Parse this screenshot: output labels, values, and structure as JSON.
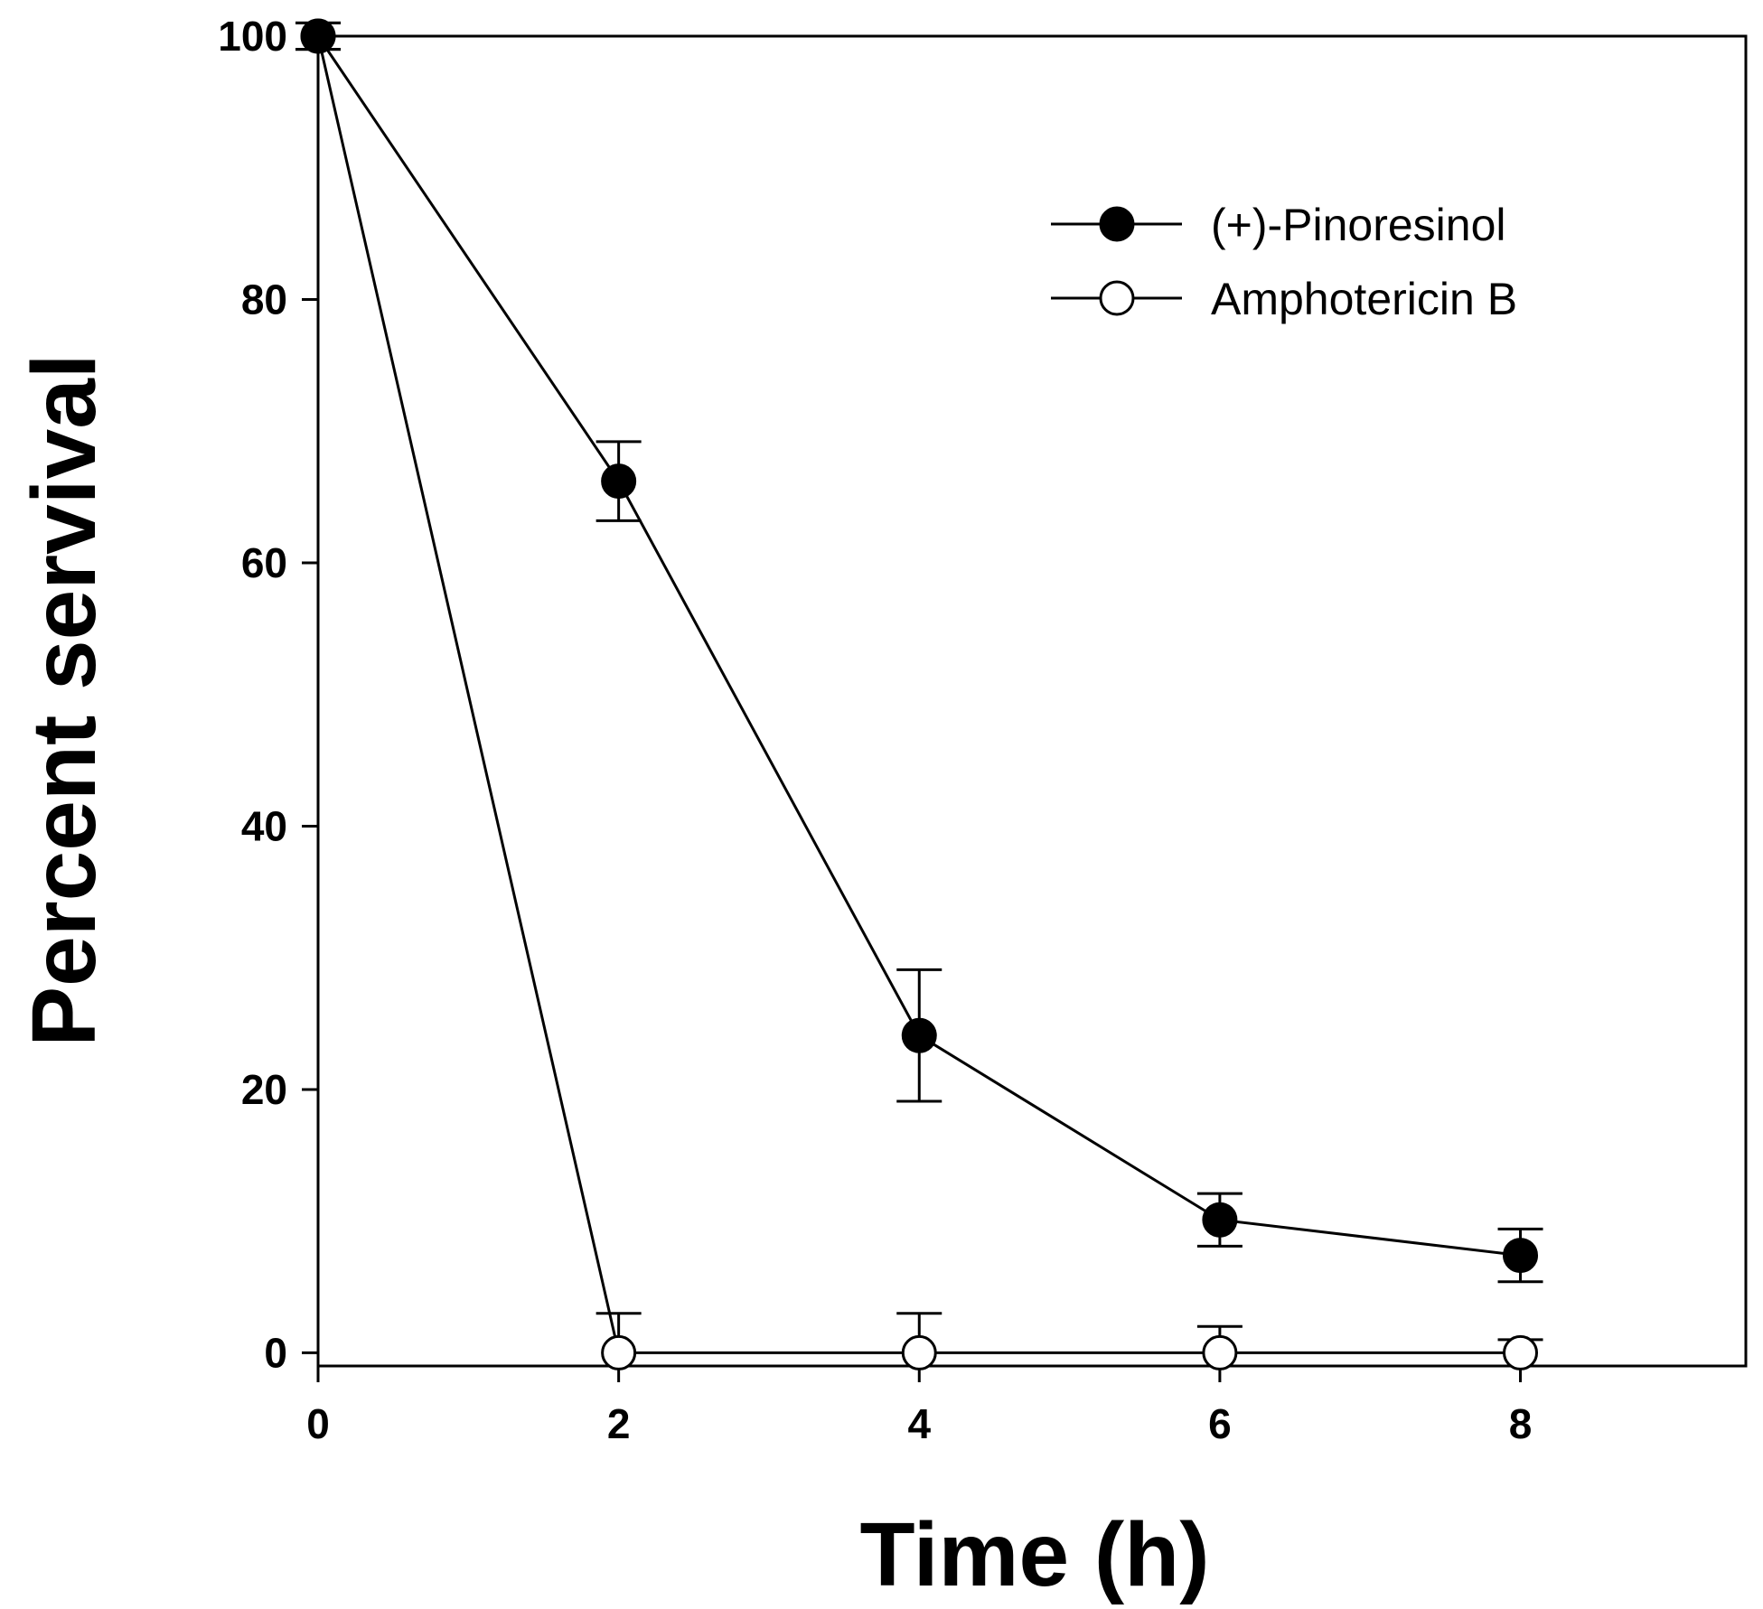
{
  "chart_data": {
    "type": "line",
    "title": "",
    "xlabel": "Time (h)",
    "ylabel": "Percent servival",
    "xlim": [
      0,
      9.5
    ],
    "ylim": [
      -1,
      100
    ],
    "xticks": [
      0,
      2,
      4,
      6,
      8
    ],
    "yticks": [
      0,
      20,
      40,
      60,
      80,
      100
    ],
    "xtick_labels": [
      "0",
      "2",
      "4",
      "6",
      "8"
    ],
    "ytick_labels": [
      "0",
      "20",
      "40",
      "60",
      "80",
      "100"
    ],
    "grid": false,
    "legend_position": "top-right",
    "series": [
      {
        "name": "(+)-Pinoresinol",
        "marker": "filled-circle",
        "x": [
          0,
          2,
          4,
          6,
          8
        ],
        "y": [
          100,
          66.2,
          24.1,
          10.1,
          7.4
        ],
        "error": [
          1,
          3,
          5,
          2,
          2
        ]
      },
      {
        "name": "Amphotericin B",
        "marker": "open-circle",
        "x": [
          0,
          2,
          4,
          6,
          8
        ],
        "y": [
          100,
          0,
          0,
          0,
          0
        ],
        "error": [
          1,
          3,
          3,
          2,
          1
        ]
      }
    ],
    "colors": {
      "line": "#000000",
      "background": "#ffffff"
    }
  }
}
